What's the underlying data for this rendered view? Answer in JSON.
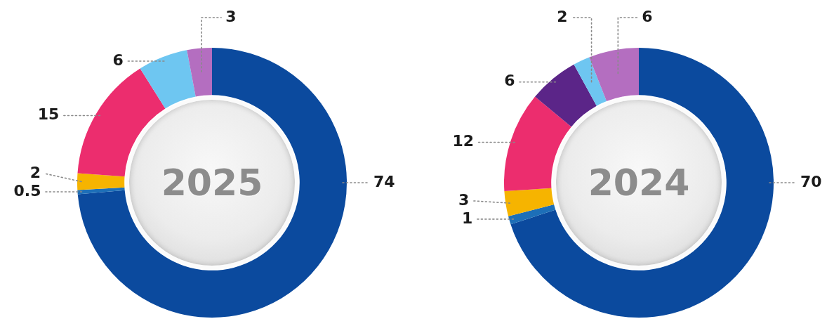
{
  "chart_data": [
    {
      "type": "donut",
      "title": "2025",
      "categories": [
        null,
        null,
        null,
        null,
        null,
        null
      ],
      "values": [
        74,
        0.5,
        2,
        15,
        6,
        3
      ],
      "colors": [
        "#0b4a9e",
        "#1d6fb8",
        "#f6b400",
        "#ec2d6e",
        "#6ec6f1",
        "#b46ec0"
      ],
      "data_labels": true
    },
    {
      "type": "donut",
      "title": "2024",
      "categories": [
        null,
        null,
        null,
        null,
        null,
        null,
        null
      ],
      "values": [
        70,
        1,
        3,
        12,
        6,
        2,
        6
      ],
      "colors": [
        "#0b4a9e",
        "#1d6fb8",
        "#f6b400",
        "#ec2d6e",
        "#5b2588",
        "#6ec6f1",
        "#b46ec0"
      ],
      "data_labels": true
    }
  ]
}
